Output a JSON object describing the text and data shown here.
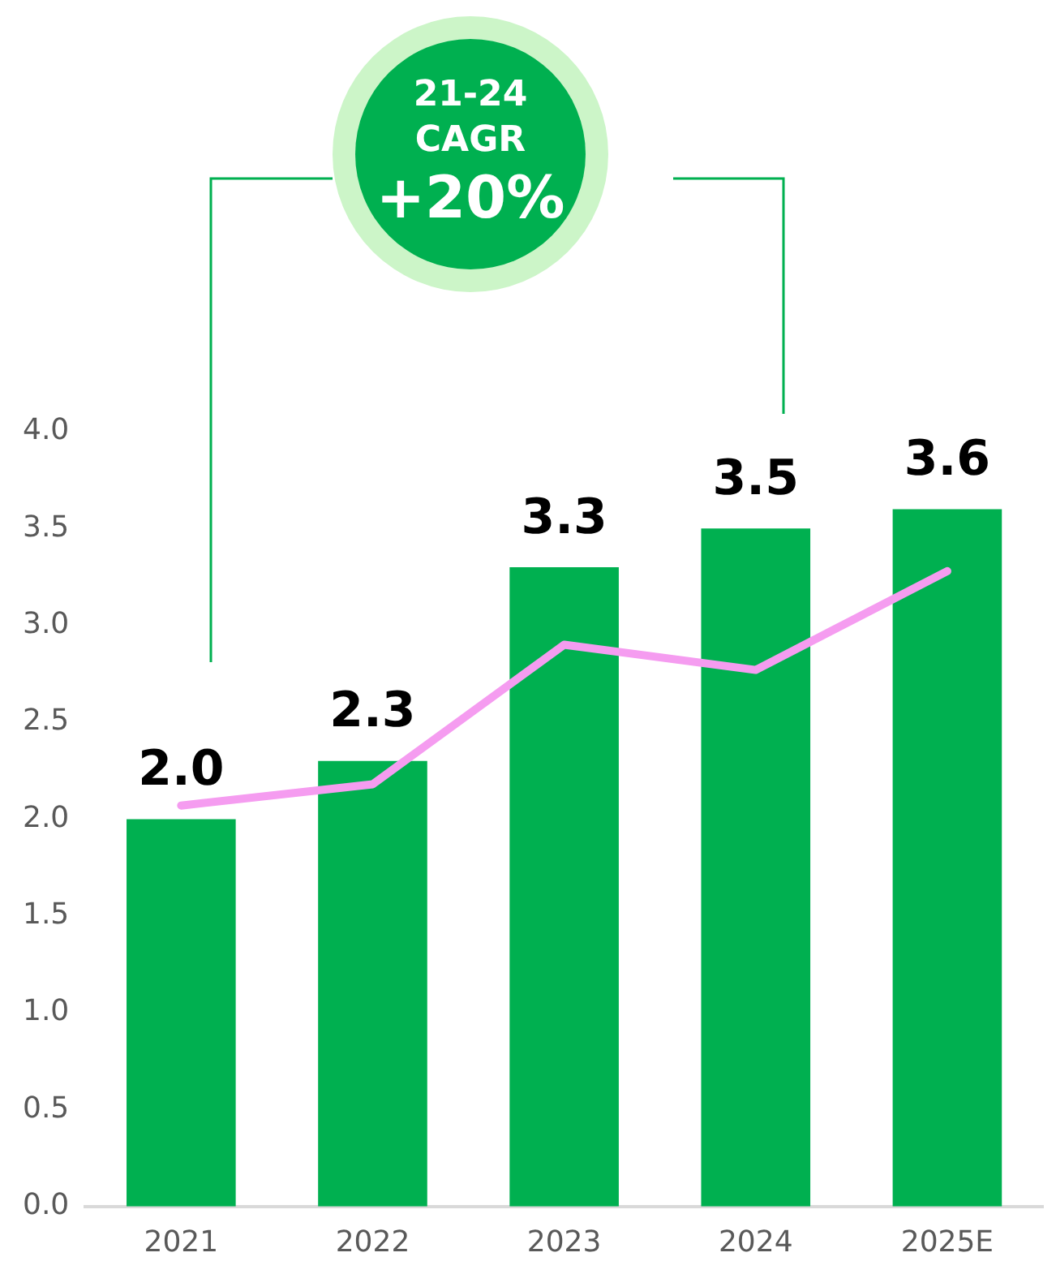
{
  "chart_data": {
    "type": "bar",
    "categories": [
      "2021",
      "2022",
      "2023",
      "2024",
      "2025E"
    ],
    "series": [
      {
        "color": "#00b050",
        "values": [
          2.0,
          2.3,
          3.3,
          3.5,
          3.6
        ],
        "value_labels": [
          "2.0",
          "2.3",
          "3.3",
          "3.5",
          "3.6"
        ]
      },
      {
        "type": "line",
        "color": "#f59cf0",
        "values": [
          2.07,
          2.18,
          2.9,
          2.77,
          3.28
        ]
      }
    ],
    "ylim": [
      0,
      4
    ],
    "yticks": [
      {
        "value": 0,
        "label": "0.0"
      },
      0.5,
      {
        "value": 1,
        "label": "1.0"
      },
      1.5,
      {
        "value": 2,
        "label": "2.0"
      },
      2.5,
      {
        "value": 3,
        "label": "3.0"
      },
      3.5,
      {
        "value": 4,
        "label": "4.0"
      }
    ],
    "grid": false,
    "legend": false,
    "marker": "none",
    "line_style": "solid",
    "annotations": [
      "21-24 CAGR",
      "+20%"
    ]
  }
}
